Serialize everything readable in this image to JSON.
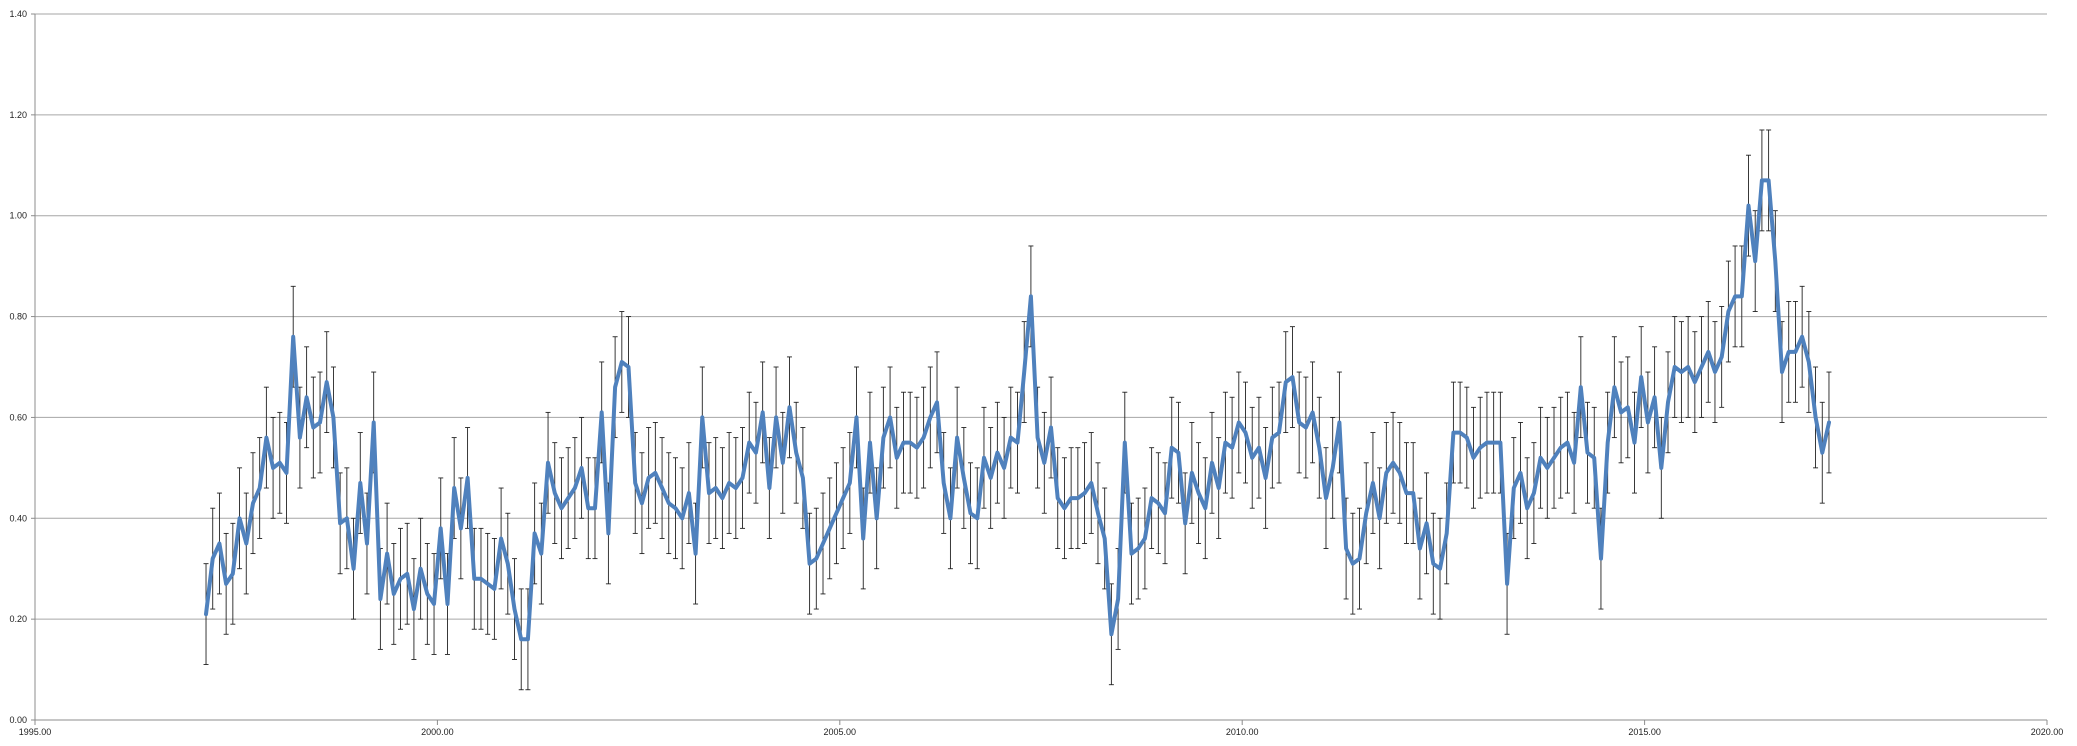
{
  "chart_data": {
    "type": "line",
    "title": "",
    "xlabel": "",
    "ylabel": "",
    "xlim": [
      1995,
      2020
    ],
    "ylim": [
      0,
      1.4
    ],
    "grid": true,
    "legend": "none",
    "colors": {
      "series": "#4f81bd",
      "grid": "#a6a6a6",
      "error_bar": "#222222",
      "axis": "#8c8c8c"
    },
    "x_ticks": [
      "1995.00",
      "2000.00",
      "2005.00",
      "2010.00",
      "2015.00",
      "2020.00"
    ],
    "y_ticks": [
      "0.00",
      "0.20",
      "0.40",
      "0.60",
      "0.80",
      "1.00",
      "1.20",
      "1.40"
    ],
    "x_start": 1997.125,
    "x_step": 0.08333,
    "series": [
      {
        "values": [
          0.21,
          0.32,
          0.35,
          0.27,
          0.29,
          0.4,
          0.35,
          0.43,
          0.46,
          0.56,
          0.5,
          0.51,
          0.49,
          0.76,
          0.56,
          0.64,
          0.58,
          0.59,
          0.67,
          0.6,
          0.39,
          0.4,
          0.3,
          0.47,
          0.35,
          0.59,
          0.24,
          0.33,
          0.25,
          0.28,
          0.29,
          0.22,
          0.3,
          0.25,
          0.23,
          0.38,
          0.23,
          0.46,
          0.38,
          0.48,
          0.28,
          0.28,
          0.27,
          0.26,
          0.36,
          0.31,
          0.22,
          0.16,
          0.16,
          0.37,
          0.33,
          0.51,
          0.45,
          0.42,
          0.44,
          0.46,
          0.5,
          0.42,
          0.42,
          0.61,
          0.37,
          0.66,
          0.71,
          0.7,
          0.47,
          0.43,
          0.48,
          0.49,
          0.46,
          0.43,
          0.42,
          0.4,
          0.45,
          0.33,
          0.6,
          0.45,
          0.46,
          0.44,
          0.47,
          0.46,
          0.48,
          0.55,
          0.53,
          0.61,
          0.46,
          0.6,
          0.51,
          0.62,
          0.53,
          0.48,
          0.31,
          0.32,
          0.35,
          0.38,
          0.41,
          0.44,
          0.47,
          0.6,
          0.36,
          0.55,
          0.4,
          0.56,
          0.6,
          0.52,
          0.55,
          0.55,
          0.54,
          0.56,
          0.6,
          0.63,
          0.47,
          0.4,
          0.56,
          0.48,
          0.41,
          0.4,
          0.52,
          0.48,
          0.53,
          0.5,
          0.56,
          0.55,
          0.69,
          0.84,
          0.56,
          0.51,
          0.58,
          0.44,
          0.42,
          0.44,
          0.44,
          0.45,
          0.47,
          0.41,
          0.36,
          0.17,
          0.24,
          0.55,
          0.33,
          0.34,
          0.36,
          0.44,
          0.43,
          0.41,
          0.54,
          0.53,
          0.39,
          0.49,
          0.45,
          0.42,
          0.51,
          0.46,
          0.55,
          0.54,
          0.59,
          0.57,
          0.52,
          0.54,
          0.48,
          0.56,
          0.57,
          0.67,
          0.68,
          0.59,
          0.58,
          0.61,
          0.54,
          0.44,
          0.5,
          0.59,
          0.34,
          0.31,
          0.32,
          0.41,
          0.47,
          0.4,
          0.49,
          0.51,
          0.49,
          0.45,
          0.45,
          0.34,
          0.39,
          0.31,
          0.3,
          0.37,
          0.57,
          0.57,
          0.56,
          0.52,
          0.54,
          0.55,
          0.55,
          0.55,
          0.27,
          0.46,
          0.49,
          0.42,
          0.45,
          0.52,
          0.5,
          0.52,
          0.54,
          0.55,
          0.51,
          0.66,
          0.53,
          0.52,
          0.32,
          0.55,
          0.66,
          0.61,
          0.62,
          0.55,
          0.68,
          0.59,
          0.64,
          0.5,
          0.63,
          0.7,
          0.69,
          0.7,
          0.67,
          0.7,
          0.73,
          0.69,
          0.72,
          0.81,
          0.84,
          0.84,
          1.02,
          0.91,
          1.07,
          1.07,
          0.91,
          0.69,
          0.73,
          0.73,
          0.76,
          0.71,
          0.6,
          0.53,
          0.59
        ],
        "error": 0.1
      }
    ]
  }
}
